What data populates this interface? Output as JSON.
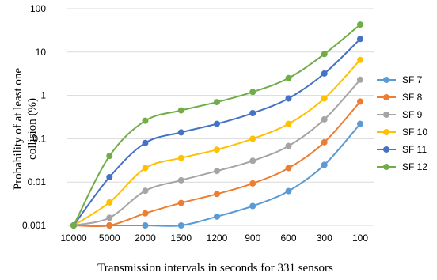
{
  "chart_data": {
    "type": "line",
    "title": "",
    "xlabel": "Transmission intervals in seconds for 331 sensors",
    "ylabel": "Probability of at least one collision (%)",
    "yscale": "log",
    "ylim": [
      0.001,
      100
    ],
    "y_ticks": [
      "0.001",
      "0.01",
      "0.1",
      "1",
      "10",
      "100"
    ],
    "y_tick_values": [
      0.001,
      0.01,
      0.1,
      1,
      10,
      100
    ],
    "grid": "horizontal",
    "legend_position": "right",
    "categories": [
      "10000",
      "5000",
      "2000",
      "1500",
      "1200",
      "900",
      "600",
      "300",
      "100"
    ],
    "series": [
      {
        "name": "SF 7",
        "color": "#5b9bd5",
        "values": [
          0.001,
          0.001,
          0.001,
          0.001,
          0.0016,
          0.0028,
          0.0062,
          0.025,
          0.22
        ]
      },
      {
        "name": "SF 8",
        "color": "#ed7d31",
        "values": [
          0.001,
          0.001,
          0.0019,
          0.0033,
          0.0053,
          0.0093,
          0.021,
          0.083,
          0.72
        ]
      },
      {
        "name": "SF 9",
        "color": "#a5a5a5",
        "values": [
          0.001,
          0.0015,
          0.0063,
          0.011,
          0.018,
          0.031,
          0.068,
          0.28,
          2.3
        ]
      },
      {
        "name": "SF 10",
        "color": "#ffc000",
        "values": [
          0.001,
          0.0034,
          0.021,
          0.036,
          0.056,
          0.1,
          0.22,
          0.85,
          6.6
        ]
      },
      {
        "name": "SF 11",
        "color": "#4472c4",
        "values": [
          0.001,
          0.013,
          0.08,
          0.14,
          0.22,
          0.39,
          0.85,
          3.2,
          20
        ]
      },
      {
        "name": "SF 12",
        "color": "#70ad47",
        "values": [
          0.001,
          0.04,
          0.26,
          0.45,
          0.7,
          1.2,
          2.5,
          9,
          43
        ]
      }
    ]
  }
}
